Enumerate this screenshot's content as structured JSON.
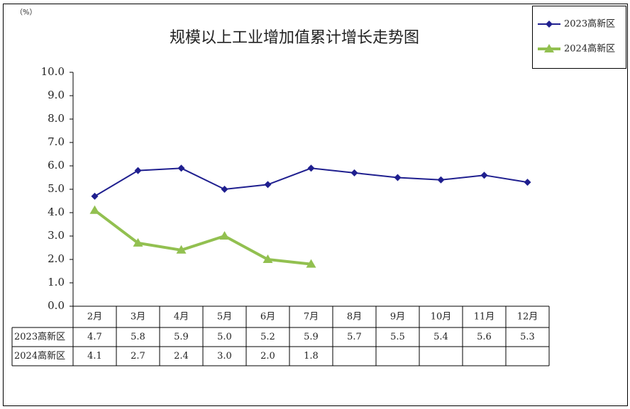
{
  "chart_data": {
    "type": "line",
    "title": "规模以上工业增加值累计增长走势图",
    "unit_label": "（%）",
    "categories": [
      "2月",
      "3月",
      "4月",
      "5月",
      "6月",
      "7月",
      "8月",
      "9月",
      "10月",
      "11月",
      "12月"
    ],
    "series": [
      {
        "name": "2023高新区",
        "color": "#1f1f8f",
        "marker": "diamond",
        "values": [
          4.7,
          5.8,
          5.9,
          5.0,
          5.2,
          5.9,
          5.7,
          5.5,
          5.4,
          5.6,
          5.3
        ],
        "value_labels": [
          "4.7",
          "5.8",
          "5.9",
          "5.0",
          "5.2",
          "5.9",
          "5.7",
          "5.5",
          "5.4",
          "5.6",
          "5.3"
        ]
      },
      {
        "name": "2024高新区",
        "color": "#92c050",
        "marker": "triangle",
        "values": [
          4.1,
          2.7,
          2.4,
          3.0,
          2.0,
          1.8,
          null,
          null,
          null,
          null,
          null
        ],
        "value_labels": [
          "4.1",
          "2.7",
          "2.4",
          "3.0",
          "2.0",
          "1.8",
          null,
          null,
          null,
          null,
          null
        ]
      }
    ],
    "ylim": [
      0,
      10
    ],
    "yticks": [
      {
        "value": 0,
        "label": "0.0"
      },
      {
        "value": 1,
        "label": "1.0"
      },
      {
        "value": 2,
        "label": "2.0"
      },
      {
        "value": 3,
        "label": "3.0"
      },
      {
        "value": 4,
        "label": "4.0"
      },
      {
        "value": 5,
        "label": "5.0"
      },
      {
        "value": 6,
        "label": "6.0"
      },
      {
        "value": 7,
        "label": "7.0"
      },
      {
        "value": 8,
        "label": "8.0"
      },
      {
        "value": 9,
        "label": "9.0"
      },
      {
        "value": 10,
        "label": "10.0"
      }
    ],
    "legend": "top-right",
    "grid": false
  }
}
